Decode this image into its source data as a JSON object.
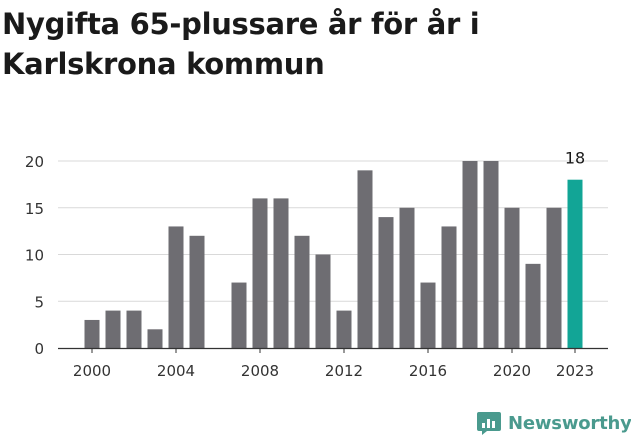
{
  "title": "Nygifta 65-plussare år för år i Karlskrona kommun",
  "brand": {
    "name": "Newsworthy",
    "icon": "newsworthy-chart-bubble-icon",
    "color": "#4a9a8e"
  },
  "colors": {
    "bar": "#6e6d72",
    "highlight": "#12a596",
    "grid": "#d9d9d9",
    "axis": "#333333"
  },
  "chart_data": {
    "type": "bar",
    "title": "Nygifta 65-plussare år för år i Karlskrona kommun",
    "xlabel": "",
    "ylabel": "",
    "ylim": [
      0,
      20
    ],
    "yticks": [
      0,
      5,
      10,
      15,
      20
    ],
    "xticks": [
      "2000",
      "2004",
      "2008",
      "2012",
      "2016",
      "2020",
      "2023"
    ],
    "grid": true,
    "categories": [
      "2000",
      "2001",
      "2002",
      "2003",
      "2004",
      "2005",
      "2006",
      "2007",
      "2008",
      "2009",
      "2010",
      "2011",
      "2012",
      "2013",
      "2014",
      "2015",
      "2016",
      "2017",
      "2018",
      "2019",
      "2020",
      "2021",
      "2022",
      "2023"
    ],
    "values": [
      3,
      4,
      4,
      2,
      13,
      12,
      0,
      7,
      16,
      16,
      12,
      10,
      4,
      19,
      14,
      15,
      7,
      13,
      20,
      20,
      15,
      9,
      15,
      18
    ],
    "highlight": {
      "category": "2023",
      "label": "18"
    }
  }
}
